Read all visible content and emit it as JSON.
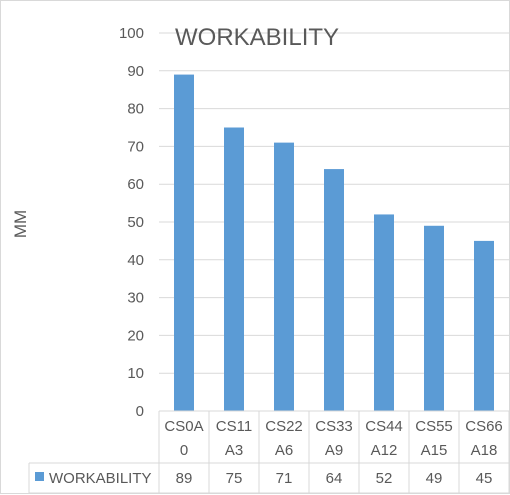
{
  "chart_data": {
    "type": "bar",
    "title": "WORKABILITY",
    "ylabel": "MM",
    "xlabel": "",
    "categories": [
      [
        "CS0A",
        "0"
      ],
      [
        "CS11",
        "A3"
      ],
      [
        "CS22",
        "A6"
      ],
      [
        "CS33",
        "A9"
      ],
      [
        "CS44",
        "A12"
      ],
      [
        "CS55",
        "A15"
      ],
      [
        "CS66",
        "A18"
      ]
    ],
    "series": [
      {
        "name": "WORKABILITY",
        "values": [
          89,
          75,
          71,
          64,
          52,
          49,
          45
        ]
      }
    ],
    "ylim": [
      0,
      100
    ],
    "yticks": [
      0,
      10,
      20,
      30,
      40,
      50,
      60,
      70,
      80,
      90,
      100
    ],
    "grid": true,
    "legend": "data-table-row",
    "data_table": true,
    "colors": {
      "bar": "#5b9bd5",
      "grid": "#d9d9d9",
      "text": "#595959"
    }
  }
}
